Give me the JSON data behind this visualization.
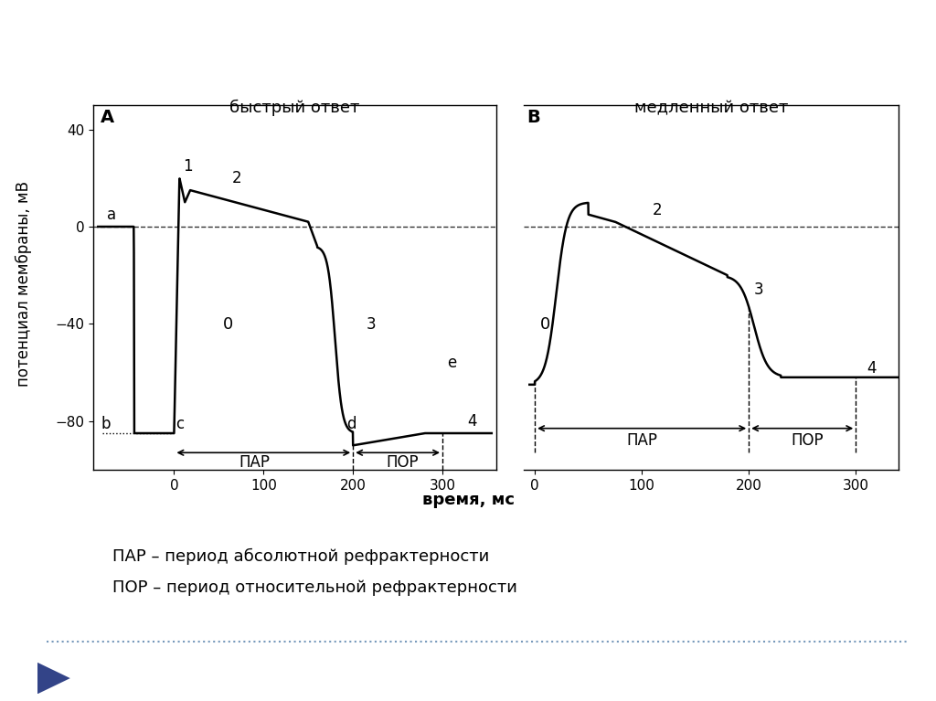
{
  "background_color": "#ffffff",
  "title_A": "быстрый ответ",
  "title_B": "медленный ответ",
  "label_A": "A",
  "label_B": "B",
  "ylabel": "потенциал мембраны, мВ",
  "xlabel": "время, мс",
  "par_label": "ПАР",
  "por_label": "ПОР",
  "legend_par": "ПАР – период абсолютной рефрактерности",
  "legend_por": "ПОР – период относительной рефрактерности",
  "ylim": [
    -100,
    50
  ],
  "xlim_A": [
    -90,
    360
  ],
  "xlim_B": [
    -10,
    340
  ],
  "yticks": [
    -80,
    -40,
    0,
    40
  ],
  "xticks_A": [
    0,
    100,
    200,
    300
  ],
  "xticks_B": [
    0,
    100,
    200,
    300
  ]
}
